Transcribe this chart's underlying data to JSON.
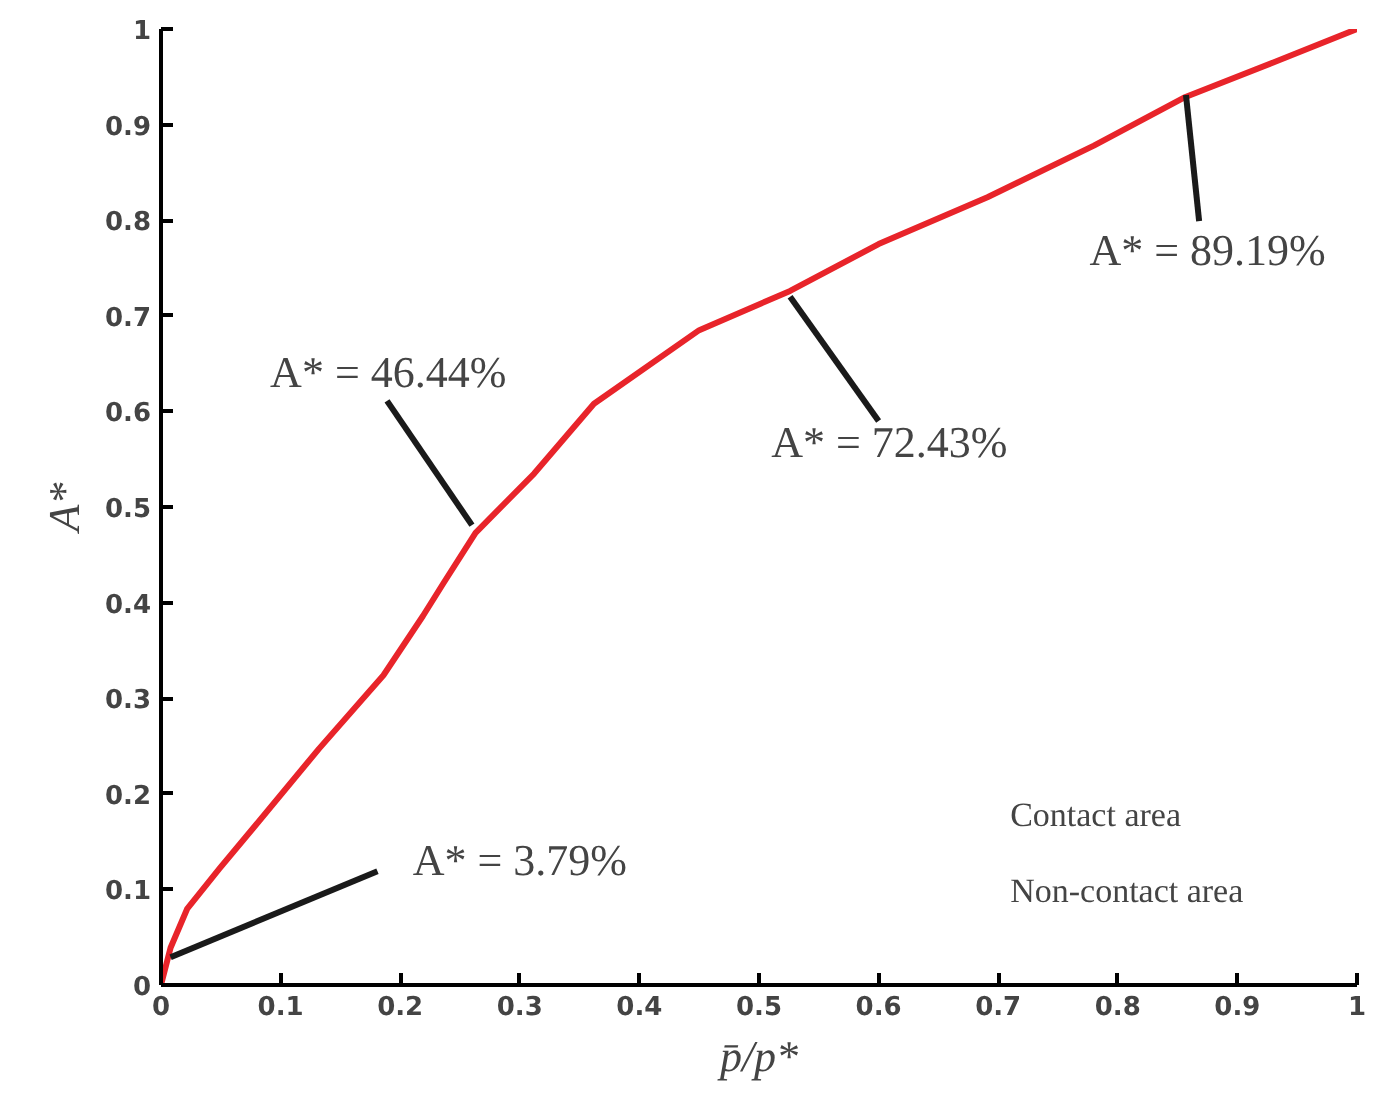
{
  "chart_data": {
    "type": "line",
    "xlabel": "p̄/p*",
    "ylabel": "A*",
    "x": [
      0,
      0.008,
      0.022,
      0.049,
      0.077,
      0.132,
      0.186,
      0.219,
      0.236,
      0.263,
      0.312,
      0.362,
      0.45,
      0.526,
      0.6,
      0.691,
      0.78,
      0.855,
      0.93,
      1.0
    ],
    "series": [
      {
        "color": "#e8242a",
        "values": [
          0,
          0.039,
          0.08,
          0.122,
          0.164,
          0.247,
          0.324,
          0.386,
          0.42,
          0.473,
          0.535,
          0.608,
          0.685,
          0.726,
          0.775,
          0.824,
          0.878,
          0.928,
          0.965,
          1.0
        ]
      }
    ],
    "xlim": [
      0,
      1
    ],
    "ylim": [
      0,
      1
    ],
    "xticks": [
      0,
      0.1,
      0.2,
      0.3,
      0.4,
      0.5,
      0.6,
      0.7,
      0.8,
      0.9,
      1
    ],
    "yticks": [
      0,
      0.1,
      0.2,
      0.3,
      0.4,
      0.5,
      0.6,
      0.7,
      0.8,
      0.9,
      1
    ],
    "grid": false,
    "marker": "none",
    "line_style": "solid",
    "annotations": [
      {
        "text": "A* = 3.79%",
        "x": 0.008,
        "y": 0.029
      },
      {
        "text": "A* = 46.44%",
        "x": 0.26,
        "y": 0.481
      },
      {
        "text": "A* = 72.43%",
        "x": 0.526,
        "y": 0.72
      },
      {
        "text": "A* = 89.19%",
        "x": 0.857,
        "y": 0.931
      },
      "Contact area",
      "Non-contact area"
    ]
  }
}
